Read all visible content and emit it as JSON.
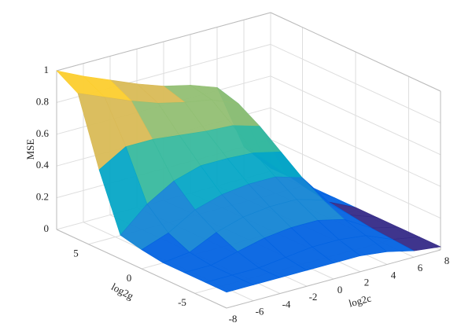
{
  "chart_data": {
    "type": "surface",
    "xlabel": "log2c",
    "ylabel": "log2g",
    "zlabel": "MSE",
    "x": [
      -8,
      -6,
      -4,
      -2,
      0,
      2,
      4,
      6,
      8
    ],
    "y": [
      -8,
      -6,
      -4,
      -2,
      0,
      2,
      4,
      6,
      8
    ],
    "z": [
      [
        0.1,
        0.1,
        0.1,
        0.1,
        0.1,
        0.1,
        0.08,
        0.04,
        0.02
      ],
      [
        0.1,
        0.1,
        0.1,
        0.12,
        0.14,
        0.14,
        0.12,
        0.05,
        0.02
      ],
      [
        0.1,
        0.1,
        0.14,
        0.18,
        0.2,
        0.2,
        0.16,
        0.06,
        0.02
      ],
      [
        0.1,
        0.12,
        0.2,
        0.25,
        0.27,
        0.27,
        0.22,
        0.08,
        0.02
      ],
      [
        0.12,
        0.18,
        0.28,
        0.33,
        0.35,
        0.35,
        0.3,
        0.1,
        0.02
      ],
      [
        0.15,
        0.3,
        0.4,
        0.45,
        0.45,
        0.44,
        0.4,
        0.12,
        0.02
      ],
      [
        0.5,
        0.6,
        0.6,
        0.58,
        0.56,
        0.55,
        0.5,
        0.15,
        0.02
      ],
      [
        0.92,
        0.85,
        0.78,
        0.72,
        0.68,
        0.65,
        0.58,
        0.18,
        0.02
      ],
      [
        1.0,
        0.92,
        0.85,
        0.78,
        0.72,
        0.68,
        0.62,
        0.2,
        0.02
      ]
    ],
    "xlim": [
      -8,
      8
    ],
    "xticks": [
      -8,
      -6,
      -4,
      -2,
      0,
      2,
      4,
      6,
      8
    ],
    "ylim": [
      -8,
      8
    ],
    "yticks": [
      -5,
      0,
      5
    ],
    "zlim": [
      0,
      1
    ],
    "zticks": [
      0,
      0.2,
      0.4,
      0.6,
      0.8,
      1
    ],
    "grid": true,
    "colormap": [
      "#352a87",
      "#0363e1",
      "#1485d4",
      "#06a7c6",
      "#38b99e",
      "#92bf73",
      "#d9ba56",
      "#fcce2e",
      "#f9fb0e"
    ]
  }
}
